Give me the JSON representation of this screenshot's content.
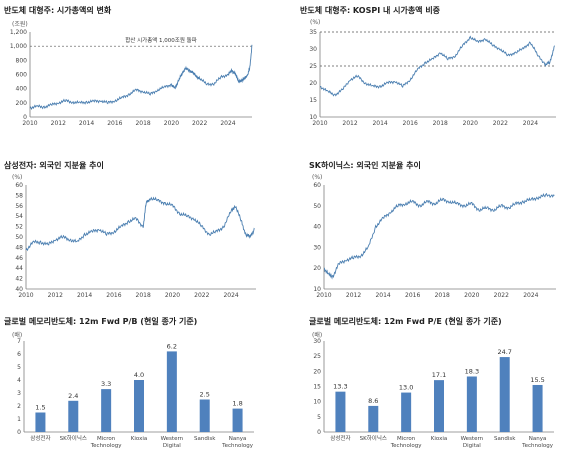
{
  "chart_data": [
    {
      "id": "c1",
      "type": "line",
      "title": "반도체 대형주: 시가총액의 변화",
      "unit": "(조원)",
      "xlim": [
        2010,
        2025.7
      ],
      "xticks": [
        "2010",
        "2012",
        "2014",
        "2016",
        "2018",
        "2020",
        "2022",
        "2024"
      ],
      "ylim": [
        0,
        1200
      ],
      "yticks": [
        "0",
        "200",
        "400",
        "600",
        "800",
        "1,000",
        "1,200"
      ],
      "hline": 1000,
      "annotation": "합산 시가총액 1,000조원 돌파",
      "grid": false,
      "series_color": "#4a7eb0",
      "series": [
        {
          "x": [
            2010,
            2010.5,
            2011,
            2011.5,
            2012,
            2012.5,
            2013,
            2013.5,
            2014,
            2014.5,
            2015,
            2015.5,
            2016,
            2016.5,
            2017,
            2017.5,
            2018,
            2018.5,
            2019,
            2019.5,
            2020,
            2020.25,
            2020.5,
            2020.75,
            2021,
            2021.25,
            2021.5,
            2021.75,
            2022,
            2022.5,
            2023,
            2023.5,
            2024,
            2024.25,
            2024.5,
            2024.75,
            2025,
            2025.2,
            2025.4,
            2025.55,
            2025.7
          ],
          "y": [
            130,
            150,
            140,
            170,
            200,
            230,
            210,
            200,
            210,
            220,
            230,
            200,
            230,
            270,
            320,
            380,
            360,
            320,
            380,
            420,
            460,
            400,
            520,
            600,
            700,
            650,
            640,
            570,
            550,
            460,
            470,
            560,
            600,
            650,
            620,
            500,
            520,
            550,
            600,
            700,
            1020
          ]
        }
      ]
    },
    {
      "id": "c2",
      "type": "line",
      "title": "반도체 대형주: KOSPI 내 시가총액 비중",
      "unit": "(%)",
      "xlim": [
        2010,
        2025.7
      ],
      "xticks": [
        "2010",
        "2012",
        "2014",
        "2016",
        "2018",
        "2020",
        "2022",
        "2024"
      ],
      "ylim": [
        10,
        35
      ],
      "yticks": [
        "10",
        "15",
        "20",
        "25",
        "30",
        "35"
      ],
      "hlines": [
        35,
        25
      ],
      "grid": false,
      "series_color": "#4a7eb0",
      "series": [
        {
          "x": [
            2010,
            2010.5,
            2011,
            2011.5,
            2012,
            2012.5,
            2013,
            2013.5,
            2014,
            2014.5,
            2015,
            2015.5,
            2016,
            2016.5,
            2017,
            2017.5,
            2018,
            2018.5,
            2019,
            2019.5,
            2020,
            2020.5,
            2021,
            2021.5,
            2022,
            2022.5,
            2023,
            2023.5,
            2024,
            2024.5,
            2025,
            2025.3,
            2025.6
          ],
          "y": [
            19,
            17.5,
            16.5,
            18,
            21,
            22,
            20,
            19,
            19,
            20,
            20.5,
            19,
            21,
            24,
            26,
            27,
            29,
            27,
            28,
            31,
            33.5,
            32,
            33,
            31,
            30,
            28,
            29,
            30,
            32,
            28,
            25.5,
            26,
            31
          ]
        }
      ]
    },
    {
      "id": "c3",
      "type": "line",
      "title": "삼성전자: 외국인 지분율 추이",
      "unit": "(%)",
      "xlim": [
        2010,
        2025.7
      ],
      "xticks": [
        "2010",
        "2012",
        "2014",
        "2016",
        "2018",
        "2020",
        "2022",
        "2024"
      ],
      "ylim": [
        40,
        60
      ],
      "yticks": [
        "40",
        "42",
        "44",
        "46",
        "48",
        "50",
        "52",
        "54",
        "56",
        "58",
        "60"
      ],
      "grid": false,
      "series_color": "#4a7eb0",
      "series": [
        {
          "x": [
            2010,
            2010.5,
            2011,
            2011.5,
            2012,
            2012.5,
            2013,
            2013.5,
            2014,
            2014.5,
            2015,
            2015.5,
            2016,
            2016.5,
            2017,
            2017.5,
            2018,
            2018.2,
            2018.5,
            2019,
            2019.5,
            2020,
            2020.5,
            2021,
            2021.5,
            2022,
            2022.5,
            2023,
            2023.5,
            2024,
            2024.3,
            2024.7,
            2025,
            2025.3,
            2025.6
          ],
          "y": [
            47.5,
            49,
            49,
            48.5,
            49.5,
            50,
            49.5,
            49,
            50.5,
            51,
            51.5,
            50.5,
            51,
            52,
            53,
            53.5,
            52,
            56.5,
            57.5,
            57,
            56.5,
            56,
            54.5,
            54,
            53.5,
            52,
            50.5,
            51,
            52,
            55,
            56,
            53,
            50.5,
            50,
            51.5
          ]
        }
      ]
    },
    {
      "id": "c4",
      "type": "line",
      "title": "SK하이닉스: 외국인 지분율 추이",
      "unit": "(%)",
      "xlim": [
        2010,
        2025.7
      ],
      "xticks": [
        "2010",
        "2012",
        "2014",
        "2016",
        "2018",
        "2020",
        "2022",
        "2024"
      ],
      "ylim": [
        10,
        60
      ],
      "yticks": [
        "10",
        "20",
        "30",
        "40",
        "50",
        "60"
      ],
      "grid": false,
      "series_color": "#4a7eb0",
      "series": [
        {
          "x": [
            2010,
            2010.3,
            2010.6,
            2011,
            2011.5,
            2012,
            2012.5,
            2013,
            2013.5,
            2014,
            2014.5,
            2015,
            2015.5,
            2016,
            2016.5,
            2017,
            2017.5,
            2018,
            2018.5,
            2019,
            2019.5,
            2020,
            2020.5,
            2021,
            2021.5,
            2022,
            2022.5,
            2023,
            2023.5,
            2024,
            2024.5,
            2025,
            2025.6
          ],
          "y": [
            20,
            17,
            16,
            22,
            24,
            25,
            26,
            30,
            40,
            44,
            47,
            50,
            51,
            52,
            50,
            52,
            51,
            53,
            52,
            51,
            50,
            51,
            48,
            49,
            48,
            50,
            49,
            51,
            52,
            53,
            54,
            55,
            55
          ]
        }
      ]
    },
    {
      "id": "c5",
      "type": "bar",
      "title": "글로벌 메모리반도체: 12m Fwd P/B (현일 종가 기준)",
      "unit": "(배)",
      "ylim": [
        0,
        7
      ],
      "yticks": [
        "0",
        "1",
        "2",
        "3",
        "4",
        "5",
        "6",
        "7"
      ],
      "grid": false,
      "bar_color": "#4f81bd",
      "categories": [
        "삼성전자",
        "SK하이닉스",
        "Micron\nTechnology",
        "Kioxia",
        "Western\nDigital",
        "Sandisk",
        "Nanya\nTechnology"
      ],
      "values": [
        1.5,
        2.4,
        3.3,
        4.0,
        6.2,
        2.5,
        1.8
      ],
      "value_labels": [
        "1.5",
        "2.4",
        "3.3",
        "4.0",
        "6.2",
        "2.5",
        "1.8"
      ]
    },
    {
      "id": "c6",
      "type": "bar",
      "title": "글로벌 메모리반도체: 12m Fwd P/E (현일 종가 기준)",
      "unit": "(배)",
      "ylim": [
        0,
        30
      ],
      "yticks": [
        "0",
        "5",
        "10",
        "15",
        "20",
        "25",
        "30"
      ],
      "grid": false,
      "bar_color": "#4f81bd",
      "categories": [
        "삼성전자",
        "SK하이닉스",
        "Micron\nTechnology",
        "Kioxia",
        "Western\nDigital",
        "Sandisk",
        "Nanya\nTechnology"
      ],
      "values": [
        13.3,
        8.6,
        13.0,
        17.1,
        18.3,
        24.7,
        15.5
      ],
      "value_labels": [
        "13.3",
        "8.6",
        "13.0",
        "17.1",
        "18.3",
        "24.7",
        "15.5"
      ]
    }
  ]
}
